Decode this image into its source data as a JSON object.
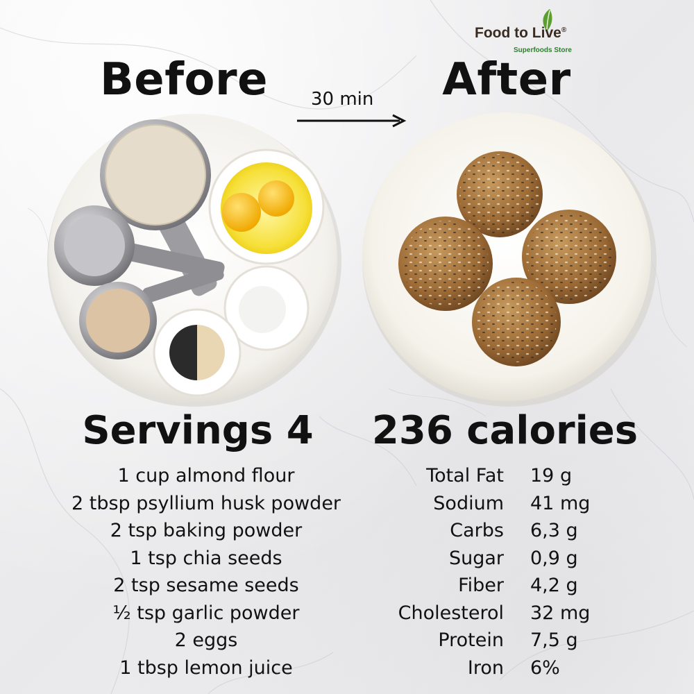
{
  "logo": {
    "name": "Food to Live",
    "registered": "®",
    "tagline": "Superfoods Store",
    "leaf_color": "#5a9e2f"
  },
  "before_label": "Before",
  "after_label": "After",
  "time_label": "30 min",
  "servings_label": "Servings 4",
  "calories_label": "236 calories",
  "ingredients": [
    "1 cup almond flour",
    "2 tbsp psyllium husk powder",
    "2 tsp baking powder",
    "1 tsp chia seeds",
    "2 tsp sesame seeds",
    "½ tsp garlic powder",
    "2 eggs",
    "1 tbsp lemon juice"
  ],
  "nutrition": [
    {
      "name": "Total Fat",
      "value": "19 g"
    },
    {
      "name": "Sodium",
      "value": "41 mg"
    },
    {
      "name": "Carbs",
      "value": "6,3 g"
    },
    {
      "name": "Sugar",
      "value": "0,9 g"
    },
    {
      "name": "Fiber",
      "value": "4,2 g"
    },
    {
      "name": "Cholesterol",
      "value": "32 mg"
    },
    {
      "name": "Protein",
      "value": "7,5 g"
    },
    {
      "name": "Iron",
      "value": "6%"
    }
  ],
  "colors": {
    "text": "#111111",
    "plate": "#f7f5f1",
    "bun": "#a9773e",
    "egg_yolk": "#f5c400",
    "marble": "#ececee"
  }
}
